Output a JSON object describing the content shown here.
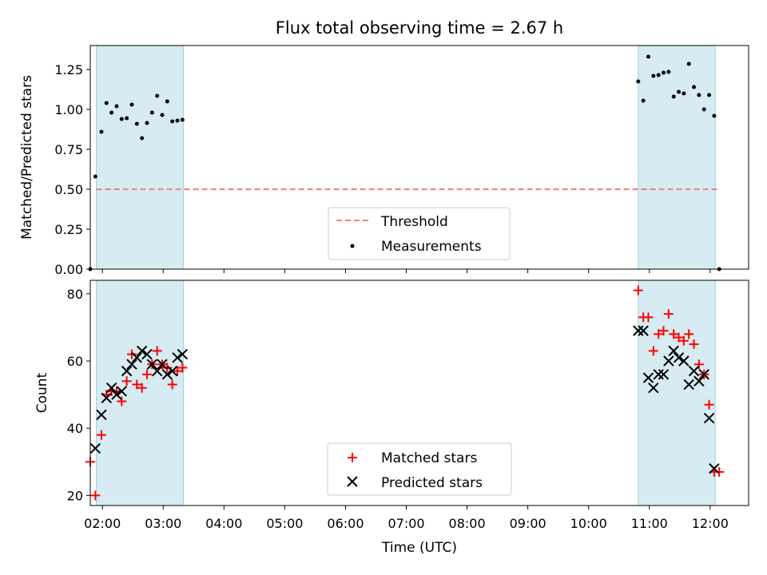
{
  "figure": {
    "title": "Flux total observing time = 2.67 h"
  },
  "chart_data": [
    {
      "type": "scatter",
      "ylabel": "Matched/Predicted stars",
      "xlabel": "",
      "xlim": [
        "01:48",
        "12:38"
      ],
      "ylim": [
        0,
        1.4
      ],
      "yticks": [
        0.0,
        0.25,
        0.5,
        0.75,
        1.0,
        1.25
      ],
      "ytick_labels": [
        "0.00",
        "0.25",
        "0.50",
        "0.75",
        "1.00",
        "1.25"
      ],
      "grid": false,
      "legend": "lower-center",
      "shaded_spans": [
        {
          "start": "01:54",
          "end": "03:20"
        },
        {
          "start": "10:49",
          "end": "12:05"
        }
      ],
      "threshold": {
        "name": "Threshold",
        "y": 0.5,
        "x_start": "01:54",
        "x_end": "12:10",
        "color": "#f08080"
      },
      "series": [
        {
          "name": "Measurements",
          "color": "#000000",
          "marker": "dot",
          "x": [
            "01:48",
            "01:53",
            "01:59",
            "02:04",
            "02:09",
            "02:14",
            "02:19",
            "02:24",
            "02:29",
            "02:34",
            "02:39",
            "02:44",
            "02:49",
            "02:54",
            "02:59",
            "03:04",
            "03:09",
            "03:14",
            "03:19",
            "10:49",
            "10:54",
            "10:59",
            "11:04",
            "11:09",
            "11:14",
            "11:19",
            "11:24",
            "11:29",
            "11:34",
            "11:39",
            "11:44",
            "11:49",
            "11:54",
            "11:59",
            "12:04",
            "12:09"
          ],
          "y": [
            0.0,
            0.58,
            0.86,
            1.04,
            0.98,
            1.02,
            0.94,
            0.945,
            1.03,
            0.91,
            0.82,
            0.915,
            0.98,
            1.085,
            0.965,
            1.05,
            0.925,
            0.93,
            0.935,
            1.175,
            1.055,
            1.33,
            1.21,
            1.215,
            1.23,
            1.235,
            1.08,
            1.11,
            1.1,
            1.285,
            1.14,
            1.09,
            1.0,
            1.09,
            0.96,
            0.0
          ]
        }
      ]
    },
    {
      "type": "scatter",
      "ylabel": "Count",
      "xlabel": "Time (UTC)",
      "xlim": [
        "01:48",
        "12:38"
      ],
      "ylim": [
        17,
        84
      ],
      "yticks": [
        20,
        40,
        60,
        80
      ],
      "xticks": [
        "02:00",
        "03:00",
        "04:00",
        "05:00",
        "06:00",
        "07:00",
        "08:00",
        "09:00",
        "10:00",
        "11:00",
        "12:00"
      ],
      "grid": false,
      "legend": "lower-center",
      "shaded_spans": [
        {
          "start": "01:54",
          "end": "03:20"
        },
        {
          "start": "10:49",
          "end": "12:05"
        }
      ],
      "series": [
        {
          "name": "Matched stars",
          "color": "#ff0000",
          "marker": "plus",
          "x": [
            "01:48",
            "01:53",
            "01:59",
            "02:04",
            "02:09",
            "02:14",
            "02:19",
            "02:24",
            "02:29",
            "02:34",
            "02:39",
            "02:44",
            "02:49",
            "02:54",
            "02:59",
            "03:04",
            "03:09",
            "03:14",
            "03:19",
            "10:49",
            "10:54",
            "10:59",
            "11:04",
            "11:09",
            "11:14",
            "11:19",
            "11:24",
            "11:29",
            "11:34",
            "11:39",
            "11:44",
            "11:49",
            "11:54",
            "11:59",
            "12:04",
            "12:09"
          ],
          "y": [
            30,
            20,
            38,
            50,
            51,
            51,
            48,
            54,
            62,
            53,
            52,
            56,
            59,
            63,
            59,
            58,
            53,
            57,
            58,
            81,
            73,
            73,
            63,
            68,
            69,
            74,
            68,
            67,
            66,
            68,
            65,
            59,
            56,
            47,
            27,
            27
          ]
        },
        {
          "name": "Predicted stars",
          "color": "#000000",
          "marker": "x",
          "x": [
            "01:53",
            "01:59",
            "02:04",
            "02:09",
            "02:14",
            "02:19",
            "02:24",
            "02:29",
            "02:34",
            "02:39",
            "02:44",
            "02:49",
            "02:54",
            "02:59",
            "03:04",
            "03:09",
            "03:14",
            "03:19",
            "10:49",
            "10:54",
            "10:59",
            "11:04",
            "11:09",
            "11:14",
            "11:19",
            "11:24",
            "11:29",
            "11:34",
            "11:39",
            "11:44",
            "11:49",
            "11:54",
            "11:59",
            "12:04"
          ],
          "y": [
            34,
            44,
            49,
            52,
            50,
            51,
            57,
            59,
            61,
            63,
            62,
            59,
            57,
            59,
            56,
            57,
            61,
            62,
            69,
            69,
            55,
            52,
            56,
            56,
            60,
            63,
            61,
            60,
            53,
            57,
            54,
            56,
            43,
            28
          ]
        }
      ]
    }
  ]
}
